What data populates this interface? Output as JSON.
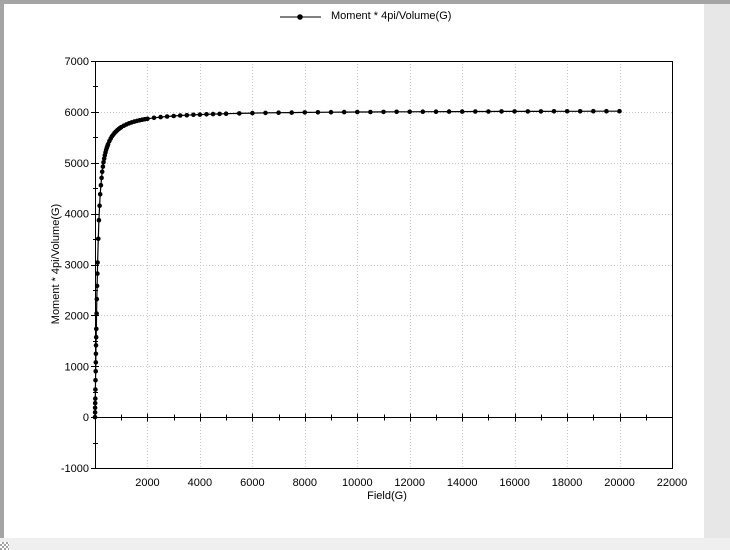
{
  "window": {
    "colors": {
      "page_bg": "#ffffff",
      "frame_dark": "#a4a4a4",
      "frame_light": "#e7e7e7",
      "frame_bottom": "#efefef"
    }
  },
  "chart_data": {
    "type": "line",
    "title": "",
    "xlabel": "Field(G)",
    "ylabel": "Moment * 4pi/Volume(G)",
    "xlim": [
      0,
      22000
    ],
    "ylim": [
      -1000,
      7000
    ],
    "x_major_ticks": [
      2000,
      4000,
      6000,
      8000,
      10000,
      12000,
      14000,
      16000,
      18000,
      20000,
      22000
    ],
    "x_minor_tick_step": 1000,
    "y_major_ticks": [
      -1000,
      0,
      1000,
      2000,
      3000,
      4000,
      5000,
      6000,
      7000
    ],
    "y_minor_ticks": [
      -500,
      500,
      1500,
      2500,
      3500,
      4500,
      5500,
      6500
    ],
    "x_axis_drawn_at_y": 0,
    "x_axis_tick_positions": [
      1000,
      2000,
      3000,
      4000,
      5000,
      6000,
      7000,
      8000,
      9000,
      10000,
      11000,
      12000,
      13000,
      14000,
      15000,
      16000,
      17000,
      18000,
      19000,
      20000,
      21000
    ],
    "grid": {
      "vertical_at": [
        2000,
        4000,
        6000,
        8000,
        10000,
        12000,
        14000,
        16000,
        18000,
        20000
      ],
      "horizontal_at": [
        1000,
        2000,
        3000,
        4000,
        5000,
        6000
      ],
      "style": "dotted",
      "color": "#c9c9c9"
    },
    "axis_color": "#000000",
    "legend": {
      "position": "top-center",
      "marker": "filled-circle-on-line"
    },
    "series": [
      {
        "name": "Moment * 4pi/Volume(G)",
        "color": "#000000",
        "marker": "circle",
        "x": [
          0,
          2.5,
          5,
          7.5,
          10,
          15,
          20,
          25,
          30,
          35,
          40,
          45,
          50,
          60,
          70,
          80,
          90,
          100,
          125,
          150,
          175,
          200,
          225,
          250,
          275,
          300,
          325,
          350,
          375,
          400,
          425,
          450,
          475,
          500,
          550,
          600,
          650,
          700,
          750,
          800,
          850,
          900,
          950,
          1000,
          1100,
          1200,
          1300,
          1400,
          1500,
          1600,
          1700,
          1800,
          1900,
          2000,
          2250,
          2500,
          2750,
          3000,
          3250,
          3500,
          3750,
          4000,
          4250,
          4500,
          4750,
          5000,
          5500,
          6000,
          6500,
          7000,
          7500,
          8000,
          8500,
          9000,
          9500,
          10000,
          10500,
          11000,
          11500,
          12000,
          12500,
          13000,
          13500,
          14000,
          14500,
          15000,
          15500,
          16000,
          16500,
          17000,
          17500,
          18000,
          18500,
          19000,
          19500,
          20000
        ],
        "y": [
          0,
          92,
          183,
          275,
          365,
          543,
          725,
          901,
          1075,
          1244,
          1410,
          1571,
          1735,
          2036,
          2319,
          2579,
          2821,
          3039,
          3506,
          3871,
          4156,
          4380,
          4559,
          4703,
          4824,
          4925,
          5010,
          5082,
          5145,
          5201,
          5250,
          5293,
          5332,
          5367,
          5427,
          5477,
          5520,
          5556,
          5588,
          5615,
          5640,
          5661,
          5681,
          5698,
          5729,
          5754,
          5775,
          5793,
          5809,
          5823,
          5835,
          5846,
          5856,
          5864,
          5883,
          5897,
          5909,
          5919,
          5928,
          5935,
          5942,
          5947,
          5952,
          5956,
          5960,
          5964,
          5970,
          5975,
          5979,
          5983,
          5986,
          5989,
          5991,
          5993,
          5995,
          5997,
          5998,
          6000,
          6001,
          6002,
          6003,
          6004,
          6005,
          6006,
          6007,
          6008,
          6009,
          6009,
          6010,
          6010,
          6011,
          6012,
          6012,
          6013,
          6013,
          6013
        ]
      }
    ]
  }
}
